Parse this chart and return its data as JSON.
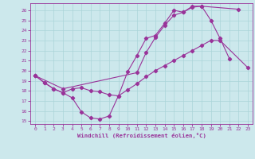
{
  "xlabel": "Windchill (Refroidissement éolien,°C)",
  "bg_color": "#cce8ec",
  "line_color": "#993399",
  "grid_color": "#aad4d8",
  "xlim": [
    -0.5,
    23.5
  ],
  "ylim": [
    14.7,
    26.7
  ],
  "yticks": [
    15,
    16,
    17,
    18,
    19,
    20,
    21,
    22,
    23,
    24,
    25,
    26
  ],
  "xticks": [
    0,
    1,
    2,
    3,
    4,
    5,
    6,
    7,
    8,
    9,
    10,
    11,
    12,
    13,
    14,
    15,
    16,
    17,
    18,
    19,
    20,
    21,
    22,
    23
  ],
  "series1_x": [
    0,
    1,
    2,
    3,
    4,
    5,
    6,
    7,
    8,
    9,
    10,
    11,
    12,
    13,
    14,
    15,
    16,
    17,
    18,
    19,
    20,
    21
  ],
  "series1_y": [
    19.5,
    18.8,
    18.2,
    17.8,
    17.3,
    15.9,
    15.3,
    15.2,
    15.5,
    17.5,
    19.9,
    21.5,
    23.2,
    23.5,
    24.7,
    26.0,
    25.8,
    26.4,
    26.4,
    25.0,
    23.2,
    21.2
  ],
  "series2_x": [
    0,
    1,
    2,
    3,
    4,
    5,
    6,
    7,
    8,
    9,
    10,
    11,
    12,
    13,
    14,
    15,
    16,
    17,
    18,
    19,
    20,
    23
  ],
  "series2_y": [
    19.5,
    18.8,
    18.2,
    17.8,
    18.2,
    18.3,
    18.0,
    17.9,
    17.6,
    17.5,
    18.1,
    18.7,
    19.4,
    20.0,
    20.5,
    21.0,
    21.5,
    22.0,
    22.5,
    23.0,
    23.0,
    20.3
  ],
  "series3_x": [
    0,
    3,
    11,
    12,
    13,
    14,
    15,
    16,
    17,
    18,
    22
  ],
  "series3_y": [
    19.5,
    18.2,
    19.8,
    21.8,
    23.3,
    24.5,
    25.5,
    25.8,
    26.3,
    26.4,
    26.1
  ]
}
